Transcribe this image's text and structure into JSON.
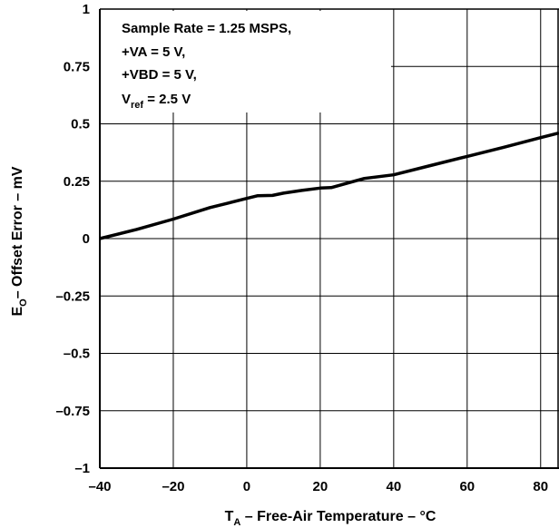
{
  "chart_data": {
    "type": "line",
    "x_label": {
      "main": "T",
      "sub": "A",
      "rest": " – Free-Air Temperature – °C"
    },
    "y_label": {
      "main": "E",
      "sub": "O",
      "rest": "– Offset Error – mV"
    },
    "xlim": [
      -40,
      85
    ],
    "ylim": [
      -1,
      1
    ],
    "x_ticks": [
      -40,
      -20,
      0,
      20,
      40,
      60,
      80
    ],
    "x_tick_labels": [
      "–40",
      "–20",
      "0",
      "20",
      "40",
      "60",
      "80"
    ],
    "y_ticks": [
      -1,
      -0.75,
      -0.5,
      -0.25,
      0,
      0.25,
      0.5,
      0.75,
      1
    ],
    "y_tick_labels": [
      "–1",
      "–0.75",
      "–0.5",
      "–0.25",
      "0",
      "0.25",
      "0.5",
      "0.75",
      "1"
    ],
    "grid": true,
    "annotation": {
      "lines": [
        "Sample Rate = 1.25 MSPS,",
        "+VA = 5 V,",
        "+VBD = 5 V,"
      ],
      "vref": {
        "main": "V",
        "sub": "ref",
        "rest": " = 2.5 V"
      }
    },
    "series": [
      {
        "x": [
          -40,
          -30,
          -20,
          -10,
          -5,
          0,
          3,
          7,
          10,
          15,
          20,
          23,
          27,
          32,
          40,
          50,
          60,
          70,
          80,
          85
        ],
        "y": [
          0,
          0.04,
          0.085,
          0.135,
          0.155,
          0.175,
          0.187,
          0.188,
          0.198,
          0.21,
          0.22,
          0.222,
          0.24,
          0.262,
          0.278,
          0.318,
          0.358,
          0.398,
          0.44,
          0.46
        ]
      }
    ]
  }
}
